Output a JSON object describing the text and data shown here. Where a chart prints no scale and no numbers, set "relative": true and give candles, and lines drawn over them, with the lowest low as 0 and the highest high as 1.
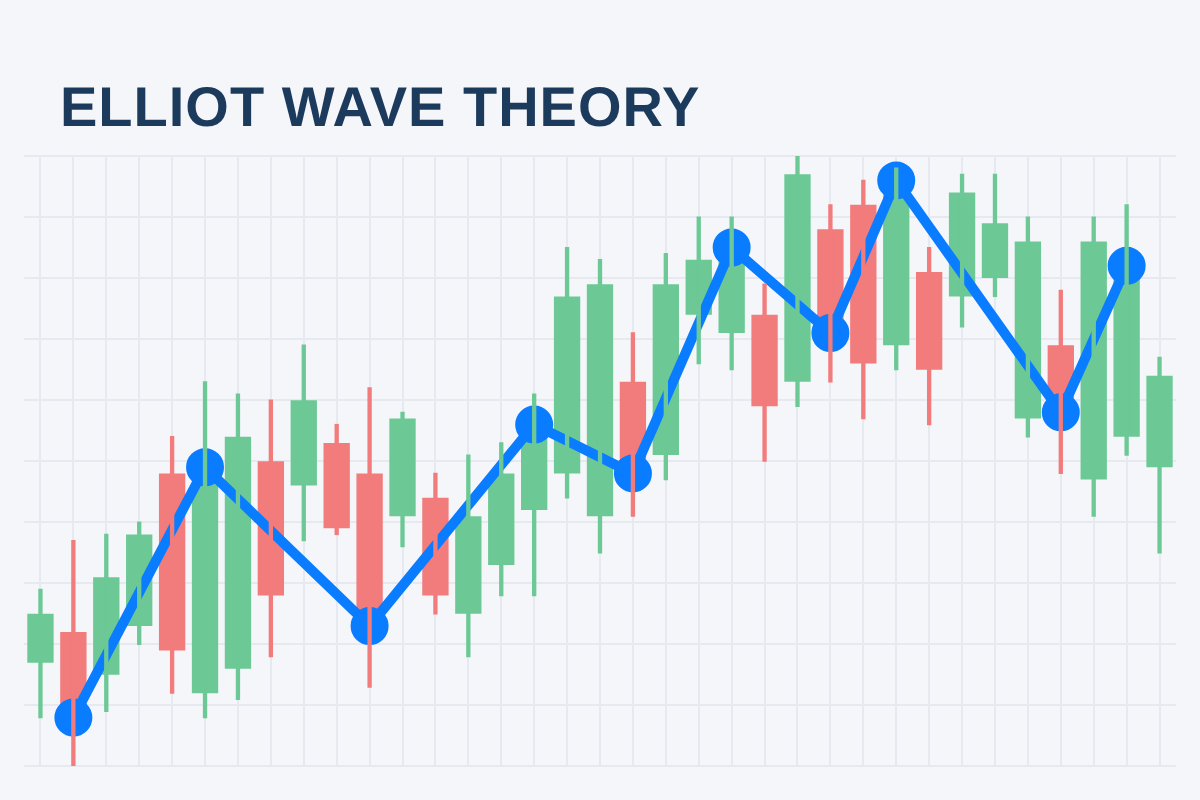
{
  "chart_data": {
    "type": "candlestick",
    "title": "ELLIOT WAVE THEORY",
    "relative": true,
    "grid": true,
    "marker": "circle",
    "line_style": "solid",
    "categories": [
      null,
      null,
      null,
      null,
      null,
      null,
      null,
      null,
      null,
      null,
      null,
      null,
      null,
      null,
      null,
      null,
      null,
      null,
      null,
      null,
      null,
      null,
      null,
      null,
      null,
      null,
      null,
      null,
      null,
      null,
      null,
      null,
      null,
      null,
      null
    ],
    "ohlc": [
      [
        0.17,
        0.29,
        0.08,
        0.25
      ],
      [
        0.22,
        0.37,
        0,
        0.1
      ],
      [
        0.15,
        0.38,
        0.09,
        0.31
      ],
      [
        0.23,
        0.4,
        0.2,
        0.38
      ],
      [
        0.48,
        0.54,
        0.12,
        0.19
      ],
      [
        0.12,
        0.63,
        0.08,
        0.51
      ],
      [
        0.16,
        0.61,
        0.11,
        0.54
      ],
      [
        0.5,
        0.6,
        0.18,
        0.28
      ],
      [
        0.46,
        0.69,
        0.37,
        0.6
      ],
      [
        0.53,
        0.56,
        0.38,
        0.39
      ],
      [
        0.48,
        0.62,
        0.13,
        0.23
      ],
      [
        0.41,
        0.58,
        0.36,
        0.57
      ],
      [
        0.44,
        0.48,
        0.25,
        0.28
      ],
      [
        0.25,
        0.51,
        0.18,
        0.41
      ],
      [
        0.33,
        0.53,
        0.28,
        0.48
      ],
      [
        0.42,
        0.61,
        0.28,
        0.56
      ],
      [
        0.48,
        0.85,
        0.44,
        0.77
      ],
      [
        0.41,
        0.83,
        0.35,
        0.79
      ],
      [
        0.63,
        0.71,
        0.41,
        0.48
      ],
      [
        0.51,
        0.84,
        0.47,
        0.79
      ],
      [
        0.74,
        0.9,
        0.66,
        0.83
      ],
      [
        0.71,
        0.9,
        0.65,
        0.85
      ],
      [
        0.74,
        0.79,
        0.5,
        0.59
      ],
      [
        0.63,
        1,
        0.59,
        0.97
      ],
      [
        0.88,
        0.92,
        0.63,
        0.71
      ],
      [
        0.92,
        0.96,
        0.57,
        0.66
      ],
      [
        0.69,
        0.98,
        0.65,
        0.95
      ],
      [
        0.81,
        0.85,
        0.56,
        0.65
      ],
      [
        0.77,
        0.97,
        0.72,
        0.94
      ],
      [
        0.8,
        0.97,
        0.77,
        0.89
      ],
      [
        0.57,
        0.9,
        0.54,
        0.86
      ],
      [
        0.69,
        0.78,
        0.48,
        0.58
      ],
      [
        0.47,
        0.9,
        0.41,
        0.86
      ],
      [
        0.54,
        0.92,
        0.51,
        0.82
      ],
      [
        0.49,
        0.67,
        0.35,
        0.64
      ]
    ],
    "colors": [
      "#6cc996",
      "#f27b7b",
      "#6cc996",
      "#6cc996",
      "#f27b7b",
      "#6cc996",
      "#6cc996",
      "#f27b7b",
      "#6cc996",
      "#f27b7b",
      "#f27b7b",
      "#6cc996",
      "#f27b7b",
      "#6cc996",
      "#6cc996",
      "#6cc996",
      "#6cc996",
      "#6cc996",
      "#f27b7b",
      "#6cc996",
      "#6cc996",
      "#6cc996",
      "#f27b7b",
      "#6cc996",
      "#f27b7b",
      "#f27b7b",
      "#6cc996",
      "#f27b7b",
      "#6cc996",
      "#6cc996",
      "#6cc996",
      "#f27b7b",
      "#6cc996",
      "#6cc996",
      "#6cc996"
    ],
    "series": [
      {
        "type": "line",
        "color": "#0a7cff",
        "values": [
          null,
          0.08,
          null,
          null,
          null,
          0.49,
          null,
          null,
          null,
          null,
          0.23,
          null,
          null,
          null,
          null,
          0.56,
          null,
          null,
          0.48,
          null,
          null,
          0.85,
          null,
          null,
          0.71,
          null,
          0.96,
          null,
          null,
          null,
          null,
          0.58,
          null,
          0.82,
          null
        ]
      }
    ]
  }
}
